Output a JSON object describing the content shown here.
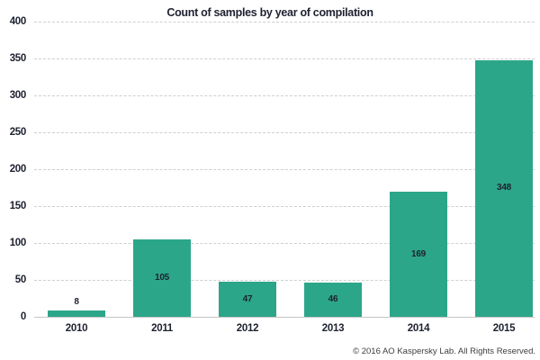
{
  "chart_data": {
    "type": "bar",
    "title": "Count of samples by year of compilation",
    "categories": [
      "2010",
      "2011",
      "2012",
      "2013",
      "2014",
      "2015"
    ],
    "values": [
      8,
      105,
      47,
      46,
      169,
      348
    ],
    "xlabel": "",
    "ylabel": "",
    "ylim": [
      0,
      400
    ],
    "yticks": [
      400,
      350,
      300,
      250,
      200,
      150,
      100,
      50,
      0
    ],
    "grid": "horizontal-dashed",
    "legend": "none",
    "bar_color": "#2CA689",
    "value_label_color": "#1E2130",
    "axis_text_color": "#1E2130"
  },
  "footer": {
    "copyright": "© 2016 AO Kaspersky Lab. All Rights Reserved."
  }
}
